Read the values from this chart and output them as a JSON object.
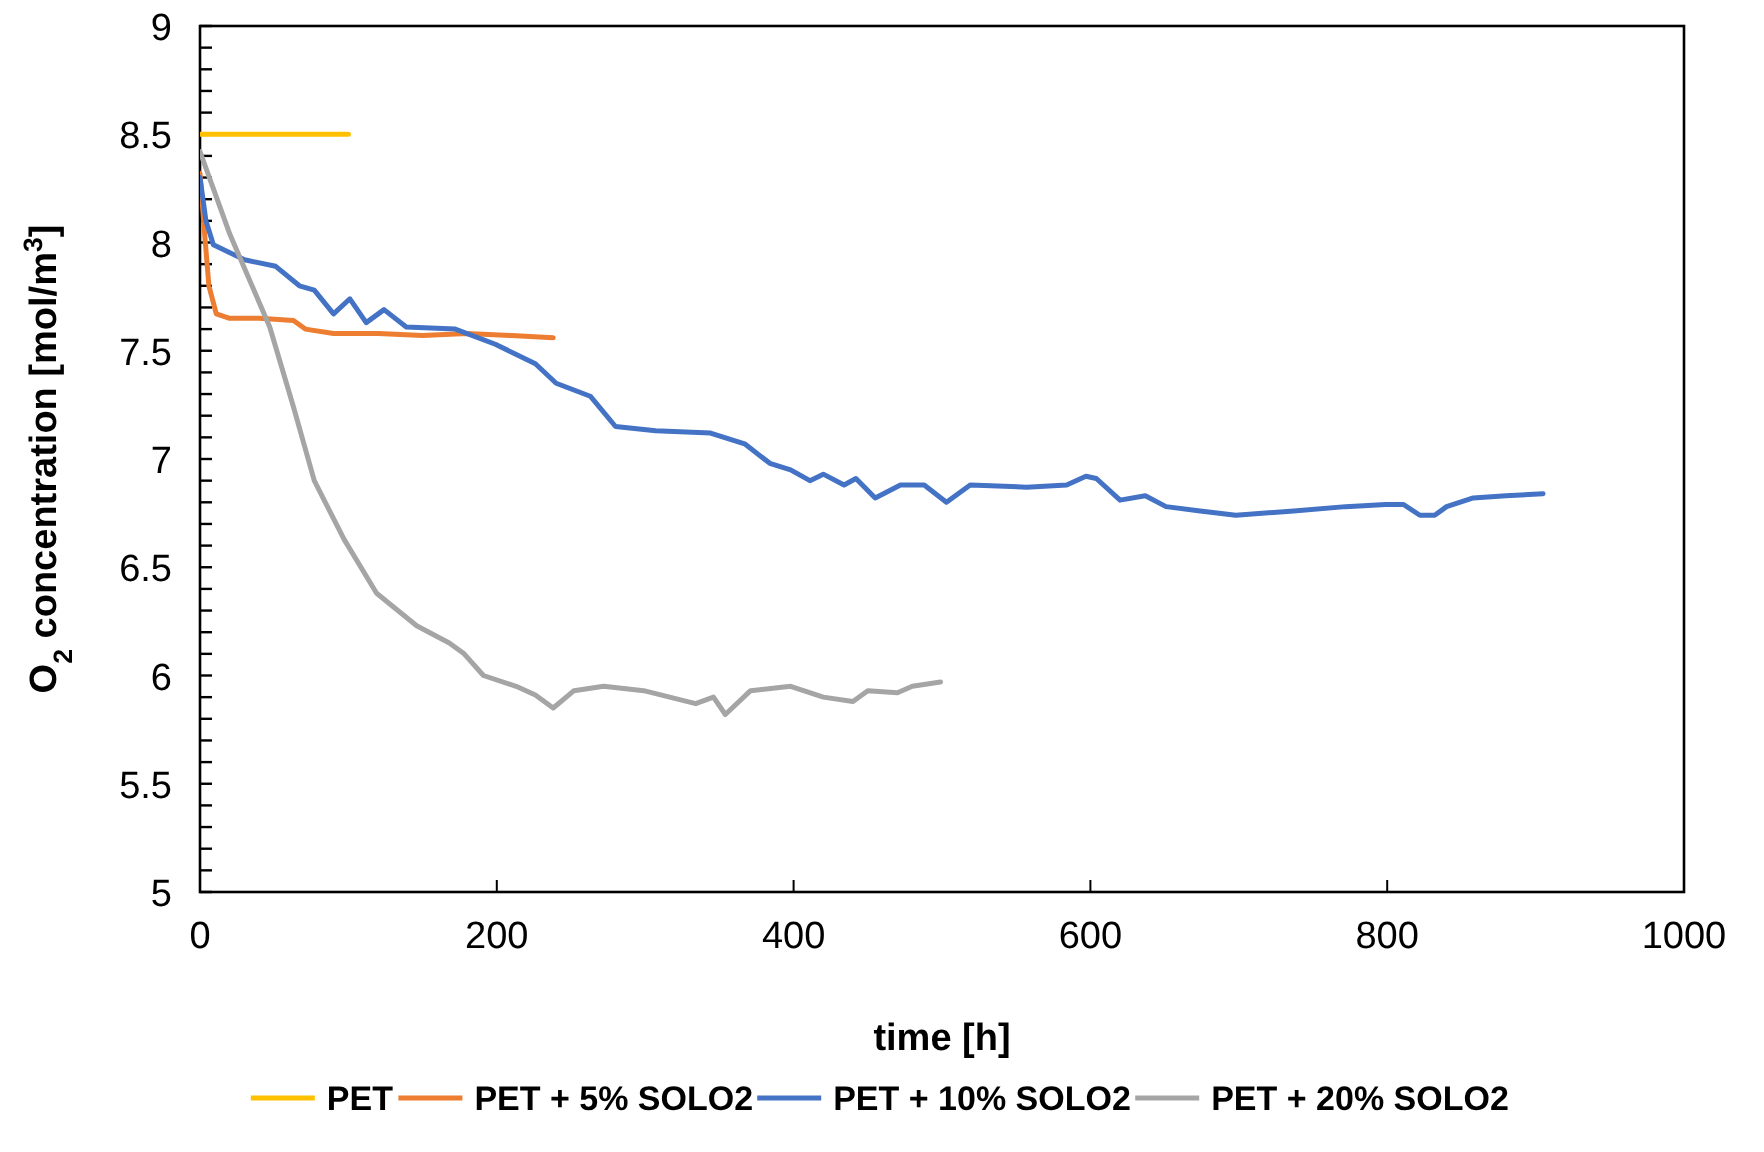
{
  "chart_data": {
    "type": "line",
    "xlabel": "time [h]",
    "ylabel": "O$_{2}$ concentration [mol/m$^{3}$]",
    "xlim": [
      0,
      1000
    ],
    "xticks": [
      0,
      200,
      400,
      600,
      800,
      1000
    ],
    "ylim": [
      5,
      9
    ],
    "yticks": [
      5,
      5.5,
      6,
      6.5,
      7,
      7.5,
      8,
      8.5,
      9
    ],
    "grid": false,
    "legend": "bottom",
    "marker": "none",
    "line_style": "solid",
    "series": [
      {
        "name": "PET",
        "color": "#ffc000",
        "x": [
          0,
          100
        ],
        "values": [
          8.5,
          8.5
        ]
      },
      {
        "name": "PET + 5% SOLO2",
        "color": "#ed7d31",
        "x": [
          0,
          3,
          6,
          11,
          20,
          40,
          63,
          71,
          90,
          120,
          150,
          180,
          210,
          238
        ],
        "values": [
          8.32,
          8.05,
          7.8,
          7.67,
          7.65,
          7.65,
          7.64,
          7.6,
          7.58,
          7.58,
          7.57,
          7.58,
          7.57,
          7.56
        ]
      },
      {
        "name": "PET + 10% SOLO2",
        "color": "#4472c4",
        "x": [
          0,
          4,
          9,
          30,
          51,
          67,
          77,
          90,
          101,
          112,
          124,
          139,
          172,
          199,
          226,
          240,
          263,
          280,
          307,
          344,
          367,
          384,
          398,
          411,
          420,
          434,
          442,
          455,
          472,
          488,
          503,
          519,
          557,
          584,
          597,
          604,
          620,
          637,
          651,
          674,
          698,
          737,
          772,
          799,
          811,
          822,
          832,
          840,
          858,
          880,
          905
        ],
        "values": [
          8.3,
          8.1,
          7.99,
          7.92,
          7.89,
          7.8,
          7.78,
          7.67,
          7.74,
          7.63,
          7.69,
          7.61,
          7.6,
          7.53,
          7.44,
          7.35,
          7.29,
          7.15,
          7.13,
          7.12,
          7.07,
          6.98,
          6.95,
          6.9,
          6.93,
          6.88,
          6.91,
          6.82,
          6.88,
          6.88,
          6.8,
          6.88,
          6.87,
          6.88,
          6.92,
          6.91,
          6.81,
          6.83,
          6.78,
          6.76,
          6.74,
          6.76,
          6.78,
          6.79,
          6.79,
          6.74,
          6.74,
          6.78,
          6.82,
          6.83,
          6.84
        ]
      },
      {
        "name": "PET + 20% SOLO2",
        "color": "#a5a5a5",
        "x": [
          0,
          20,
          47,
          63,
          77,
          97,
          119,
          146,
          168,
          178,
          191,
          213,
          226,
          238,
          252,
          272,
          299,
          334,
          346,
          354,
          371,
          398,
          420,
          440,
          450,
          470,
          480,
          499
        ],
        "values": [
          8.42,
          8.04,
          7.61,
          7.24,
          6.9,
          6.63,
          6.38,
          6.23,
          6.15,
          6.1,
          6.0,
          5.95,
          5.91,
          5.85,
          5.93,
          5.95,
          5.93,
          5.87,
          5.9,
          5.82,
          5.93,
          5.95,
          5.9,
          5.88,
          5.93,
          5.92,
          5.95,
          5.97
        ]
      }
    ]
  }
}
